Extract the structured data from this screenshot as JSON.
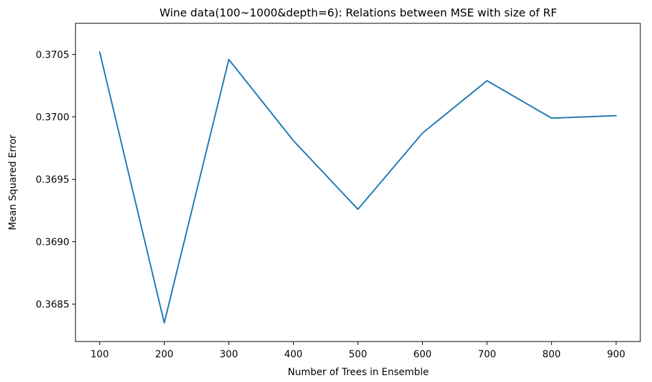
{
  "chart_data": {
    "type": "line",
    "title": "Wine data(100~1000&depth=6): Relations between MSE with size of RF",
    "xlabel": "Number of Trees in Ensemble",
    "ylabel": "Mean Squared Error",
    "x": [
      100,
      200,
      300,
      400,
      500,
      600,
      700,
      800,
      900
    ],
    "series": [
      {
        "values": [
          0.37052,
          0.36835,
          0.37046,
          0.36981,
          0.36926,
          0.36987,
          0.37029,
          0.36999,
          0.37001
        ]
      }
    ],
    "xlim": [
      62.5,
      937.5
    ],
    "ylim": [
      0.3682,
      0.37075
    ],
    "xticks": [
      100,
      200,
      300,
      400,
      500,
      600,
      700,
      800,
      900
    ],
    "xtick_labels": [
      "100",
      "200",
      "300",
      "400",
      "500",
      "600",
      "700",
      "800",
      "900"
    ],
    "yticks": [
      0.3685,
      0.369,
      0.3695,
      0.37,
      0.3705
    ],
    "ytick_labels": [
      "0.3685",
      "0.3690",
      "0.3695",
      "0.3700",
      "0.3705"
    ],
    "grid": false,
    "line_color": "#1f77b4"
  }
}
